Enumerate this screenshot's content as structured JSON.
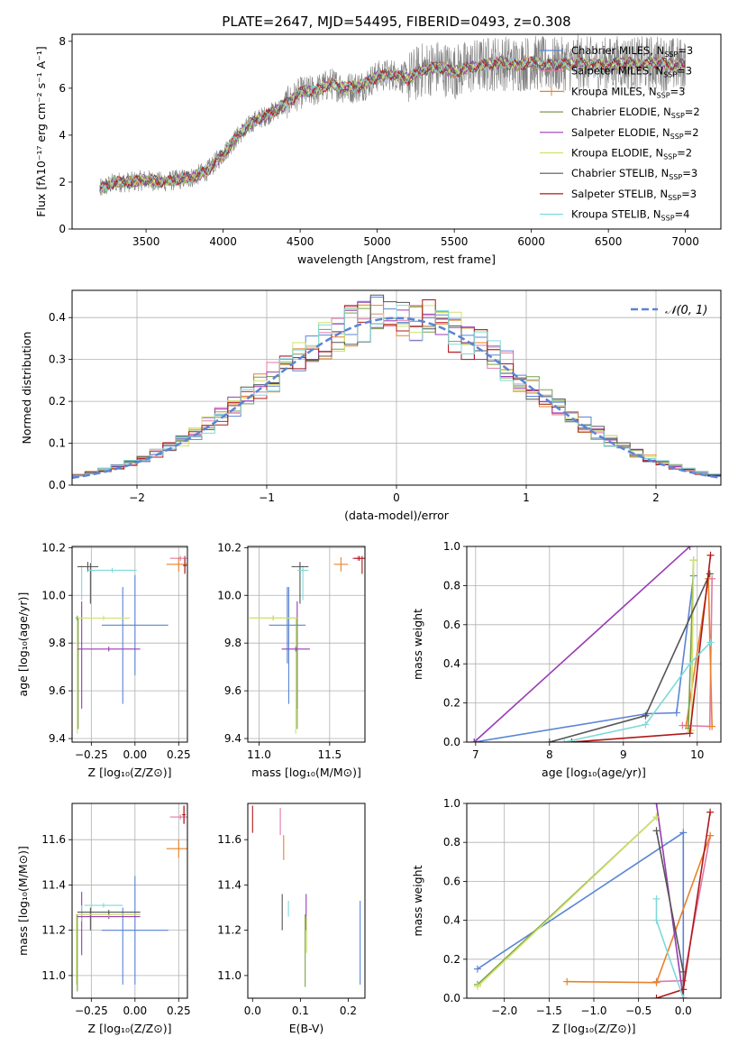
{
  "figure_title": "PLATE=2647, MJD=54495, FIBERID=0493, z=0.308",
  "colors": {
    "Chabrier MILES": "#5b84d6",
    "Salpeter MILES": "#e07aa8",
    "Kroupa MILES": "#e8822a",
    "Chabrier ELODIE": "#7a9e4a",
    "Salpeter ELODIE": "#9a3cb4",
    "Kroupa ELODIE": "#cfe36a",
    "Chabrier STELIB": "#555555",
    "Salpeter STELIB": "#b01818",
    "Kroupa STELIB": "#7fd9d9",
    "data": "#808080",
    "normal": "#5b84d6",
    "grid": "#b0b0b0"
  },
  "chart_data": [
    {
      "id": "spectrum",
      "type": "line",
      "title": "",
      "xlabel": "wavelength [Angstrom, rest frame]",
      "ylabel": "Flux [fλ10⁻¹⁷ erg cm⁻² s⁻¹ A⁻¹]",
      "xlim": [
        3020,
        7230
      ],
      "ylim": [
        0,
        8.3
      ],
      "xticks": [
        3500,
        4000,
        4500,
        5000,
        5500,
        6000,
        6500,
        7000
      ],
      "yticks": [
        0,
        2,
        4,
        6,
        8
      ],
      "grid": false,
      "legend_position": "top-right",
      "continuum": {
        "x": [
          3200,
          3300,
          3400,
          3500,
          3600,
          3700,
          3800,
          3900,
          4000,
          4100,
          4200,
          4300,
          4400,
          4500,
          4600,
          4700,
          4800,
          4900,
          5000,
          5100,
          5200,
          5300,
          5400,
          5500,
          5600,
          5700,
          5800,
          5900,
          6000,
          6100,
          6200,
          6300,
          6400,
          6500,
          6600,
          6700,
          6800,
          6900,
          7000
        ],
        "y": [
          1.7,
          2.0,
          2.0,
          2.1,
          2.0,
          2.1,
          2.2,
          2.5,
          3.2,
          4.0,
          4.6,
          4.9,
          5.3,
          5.8,
          5.9,
          6.2,
          6.0,
          6.1,
          6.5,
          6.6,
          6.4,
          6.8,
          6.9,
          6.7,
          6.9,
          7.0,
          7.1,
          7.0,
          7.1,
          7.0,
          7.0,
          7.1,
          7.0,
          7.0,
          7.1,
          7.0,
          7.1,
          7.0,
          7.0
        ]
      },
      "legend": [
        {
          "label": "Chabrier MILES, N",
          "sub": "SSP",
          "n": "=3"
        },
        {
          "label": "Salpeter MILES, N",
          "sub": "SSP",
          "n": "=3"
        },
        {
          "label": "Kroupa MILES, N",
          "sub": "SSP",
          "n": "=3"
        },
        {
          "label": "Chabrier ELODIE, N",
          "sub": "SSP",
          "n": "=2"
        },
        {
          "label": "Salpeter ELODIE, N",
          "sub": "SSP",
          "n": "=2"
        },
        {
          "label": "Kroupa ELODIE, N",
          "sub": "SSP",
          "n": "=2"
        },
        {
          "label": "Chabrier STELIB, N",
          "sub": "SSP",
          "n": "=3"
        },
        {
          "label": "Salpeter STELIB, N",
          "sub": "SSP",
          "n": "=3"
        },
        {
          "label": "Kroupa STELIB, N",
          "sub": "SSP",
          "n": "=4"
        }
      ]
    },
    {
      "id": "residuals",
      "type": "line",
      "xlabel": "(data-model)/error",
      "ylabel": "Normed distribution",
      "xlim": [
        -2.5,
        2.5
      ],
      "ylim": [
        0,
        0.465
      ],
      "xticks": [
        -2,
        -1,
        0,
        1,
        2
      ],
      "yticks": [
        0.0,
        0.1,
        0.2,
        0.3,
        0.4
      ],
      "grid": true,
      "legend_position": "top-right",
      "legend": "𝒩(0, 1)",
      "bin_width": 0.1
    },
    {
      "id": "age_Z",
      "type": "scatter",
      "xlabel": "Z [log₁₀(Z/Z⊙)]",
      "ylabel": "age  [log₁₀(age/yr)]",
      "xlim": [
        -0.36,
        0.3
      ],
      "ylim": [
        9.385,
        10.205
      ],
      "xticks": [
        -0.25,
        0.0,
        0.25
      ],
      "xticklabels": [
        "−0.25",
        "0.00",
        "0.25"
      ],
      "yticks": [
        9.4,
        9.6,
        9.8,
        10.0,
        10.2
      ],
      "grid": true,
      "points": [
        {
          "m": "Chabrier MILES",
          "x": 0.0,
          "y": 9.875,
          "xerr": 0.19,
          "yerr": 0.21
        },
        {
          "m": "Salpeter MILES",
          "x": 0.26,
          "y": 10.155,
          "xerr": 0.06,
          "yerr": 0.01
        },
        {
          "m": "Kroupa MILES",
          "x": 0.25,
          "y": 10.13,
          "xerr": 0.07,
          "yerr": 0.03
        },
        {
          "m": "Chabrier ELODIE",
          "x": -0.33,
          "y": 9.905,
          "xerr": 0.01,
          "yerr": 0.01
        },
        {
          "m": "Salpeter ELODIE",
          "x": -0.15,
          "y": 9.775,
          "xerr": 0.18,
          "yerr": 0.01
        },
        {
          "m": "Kroupa ELODIE",
          "x": -0.18,
          "y": 9.905,
          "xerr": 0.15,
          "yerr": 0.01
        },
        {
          "m": "Chabrier STELIB",
          "x": -0.27,
          "y": 10.12,
          "xerr": 0.06,
          "yerr": 0.02
        },
        {
          "m": "Salpeter STELIB",
          "x": 0.285,
          "y": 10.125,
          "xerr": 0.01,
          "yerr": 0.03
        },
        {
          "m": "Kroupa STELIB",
          "x": -0.13,
          "y": 10.105,
          "xerr": 0.14,
          "yerr": 0.01
        }
      ],
      "vlines": [
        {
          "m": "Chabrier MILES",
          "x": -0.07,
          "y0": 9.545,
          "y1": 10.035
        },
        {
          "m": "Salpeter ELODIE",
          "x": -0.305,
          "y0": 9.525,
          "y1": 9.975
        },
        {
          "m": "Kroupa STELIB",
          "x": -0.305,
          "y0": 9.98,
          "y1": 10.125
        },
        {
          "m": "Chabrier STELIB",
          "x": -0.255,
          "y0": 9.965,
          "y1": 10.135
        },
        {
          "m": "Kroupa ELODIE",
          "x": -0.33,
          "y0": 9.42,
          "y1": 9.905
        },
        {
          "m": "Chabrier ELODIE",
          "x": -0.325,
          "y0": 9.44,
          "y1": 9.905
        },
        {
          "m": "Salpeter STELIB",
          "x": 0.285,
          "y0": 10.09,
          "y1": 10.165
        }
      ]
    },
    {
      "id": "age_mass",
      "type": "scatter",
      "xlabel": "mass [log₁₀(M/M⊙)]",
      "ylabel": "",
      "xlim": [
        10.92,
        11.75
      ],
      "ylim": [
        9.385,
        10.205
      ],
      "xticks": [
        11.0,
        11.5
      ],
      "yticks": [
        9.4,
        9.6,
        9.8,
        10.0,
        10.2
      ],
      "grid": true,
      "points": [
        {
          "m": "Chabrier MILES",
          "x": 11.2,
          "y": 9.875,
          "xerr": 0.13,
          "yerr": 0.16
        },
        {
          "m": "Salpeter MILES",
          "x": 11.7,
          "y": 10.155,
          "xerr": 0.04,
          "yerr": 0.01
        },
        {
          "m": "Kroupa MILES",
          "x": 11.58,
          "y": 10.13,
          "xerr": 0.05,
          "yerr": 0.03
        },
        {
          "m": "Chabrier ELODIE",
          "x": 11.1,
          "y": 9.905,
          "xerr": 0.17,
          "yerr": 0.01
        },
        {
          "m": "Salpeter ELODIE",
          "x": 11.26,
          "y": 9.775,
          "xerr": 0.1,
          "yerr": 0.01
        },
        {
          "m": "Kroupa ELODIE",
          "x": 11.1,
          "y": 9.905,
          "xerr": 0.17,
          "yerr": 0.01
        },
        {
          "m": "Chabrier STELIB",
          "x": 11.29,
          "y": 10.12,
          "xerr": 0.06,
          "yerr": 0.02
        },
        {
          "m": "Salpeter STELIB",
          "x": 11.71,
          "y": 10.155,
          "xerr": 0.04,
          "yerr": 0.01
        },
        {
          "m": "Kroupa STELIB",
          "x": 11.31,
          "y": 10.105,
          "xerr": 0.04,
          "yerr": 0.01
        }
      ],
      "vlines": [
        {
          "m": "Chabrier MILES",
          "x": 11.21,
          "y0": 9.545,
          "y1": 10.035
        },
        {
          "m": "Salpeter ELODIE",
          "x": 11.27,
          "y0": 9.525,
          "y1": 9.975
        },
        {
          "m": "Kroupa STELIB",
          "x": 11.31,
          "y0": 9.98,
          "y1": 10.125
        },
        {
          "m": "Chabrier STELIB",
          "x": 11.29,
          "y0": 9.965,
          "y1": 10.135
        },
        {
          "m": "Kroupa ELODIE",
          "x": 11.26,
          "y0": 9.42,
          "y1": 9.905
        },
        {
          "m": "Chabrier ELODIE",
          "x": 11.27,
          "y0": 9.44,
          "y1": 9.905
        },
        {
          "m": "Salpeter STELIB",
          "x": 11.73,
          "y0": 10.09,
          "y1": 10.165
        }
      ]
    },
    {
      "id": "weight_age",
      "type": "line",
      "xlabel": "age  [log₁₀(age/yr)]",
      "ylabel": "mass weight",
      "xlim": [
        6.88,
        10.32
      ],
      "ylim": [
        0,
        1
      ],
      "xticks": [
        7,
        8,
        9,
        10
      ],
      "yticks": [
        0.0,
        0.2,
        0.4,
        0.6,
        0.8,
        1.0
      ],
      "grid": true,
      "series": [
        {
          "m": "Chabrier MILES",
          "x": [
            6.98,
            9.32,
            9.72,
            9.95
          ],
          "y": [
            0.0,
            0.145,
            0.15,
            0.85
          ]
        },
        {
          "m": "Salpeter MILES",
          "x": [
            9.8,
            10.17,
            10.2
          ],
          "y": [
            0.085,
            0.08,
            0.835
          ]
        },
        {
          "m": "Kroupa MILES",
          "x": [
            9.85,
            10.15,
            10.2
          ],
          "y": [
            0.085,
            0.835,
            0.08
          ]
        },
        {
          "m": "Chabrier ELODIE",
          "x": [
            9.88,
            9.95
          ],
          "y": [
            0.07,
            0.93
          ]
        },
        {
          "m": "Salpeter ELODIE",
          "x": [
            6.98,
            9.9
          ],
          "y": [
            0.0,
            1.0
          ]
        },
        {
          "m": "Kroupa ELODIE",
          "x": [
            9.92,
            9.95
          ],
          "y": [
            0.06,
            0.93
          ]
        },
        {
          "m": "Chabrier STELIB",
          "x": [
            8.0,
            9.3,
            10.17
          ],
          "y": [
            0.0,
            0.135,
            0.86
          ]
        },
        {
          "m": "Salpeter STELIB",
          "x": [
            8.3,
            9.9,
            10.18
          ],
          "y": [
            0.0,
            0.045,
            0.955
          ]
        },
        {
          "m": "Kroupa STELIB",
          "x": [
            8.2,
            9.3,
            9.9,
            10.18
          ],
          "y": [
            0.0,
            0.09,
            0.4,
            0.51
          ]
        }
      ]
    },
    {
      "id": "mass_Z",
      "type": "scatter",
      "xlabel": "Z [log₁₀(Z/Z⊙)]",
      "ylabel": "mass [log₁₀(M/M⊙)]",
      "xlim": [
        -0.36,
        0.3
      ],
      "ylim": [
        10.9,
        11.76
      ],
      "xticks": [
        -0.25,
        0.0,
        0.25
      ],
      "xticklabels": [
        "−0.25",
        "0.00",
        "0.25"
      ],
      "yticks": [
        11.0,
        11.2,
        11.4,
        11.6
      ],
      "grid": true,
      "points": [
        {
          "m": "Chabrier MILES",
          "x": 0.0,
          "y": 11.2,
          "xerr": 0.19,
          "yerr": 0.24
        },
        {
          "m": "Salpeter MILES",
          "x": 0.26,
          "y": 11.7,
          "xerr": 0.06,
          "yerr": 0.01
        },
        {
          "m": "Kroupa MILES",
          "x": 0.25,
          "y": 11.56,
          "xerr": 0.07,
          "yerr": 0.04
        },
        {
          "m": "Chabrier ELODIE",
          "x": -0.15,
          "y": 11.27,
          "xerr": 0.18,
          "yerr": 0.01
        },
        {
          "m": "Salpeter ELODIE",
          "x": -0.15,
          "y": 11.26,
          "xerr": 0.18,
          "yerr": 0.01
        },
        {
          "m": "Kroupa ELODIE",
          "x": -0.15,
          "y": 11.27,
          "xerr": 0.18,
          "yerr": 0.01
        },
        {
          "m": "Chabrier STELIB",
          "x": -0.15,
          "y": 11.28,
          "xerr": 0.18,
          "yerr": 0.01
        },
        {
          "m": "Salpeter STELIB",
          "x": 0.28,
          "y": 11.71,
          "xerr": 0.01,
          "yerr": 0.04
        },
        {
          "m": "Kroupa STELIB",
          "x": -0.18,
          "y": 11.31,
          "xerr": 0.11,
          "yerr": 0.01
        }
      ],
      "vlines": [
        {
          "m": "Chabrier MILES",
          "x": -0.07,
          "y0": 10.96,
          "y1": 11.3
        },
        {
          "m": "Salpeter ELODIE",
          "x": -0.305,
          "y0": 11.09,
          "y1": 11.37
        },
        {
          "m": "Kroupa STELIB",
          "x": -0.305,
          "y0": 11.24,
          "y1": 11.31
        },
        {
          "m": "Chabrier STELIB",
          "x": -0.255,
          "y0": 11.2,
          "y1": 11.3
        },
        {
          "m": "Kroupa ELODIE",
          "x": -0.335,
          "y0": 10.96,
          "y1": 11.27
        },
        {
          "m": "Chabrier ELODIE",
          "x": -0.33,
          "y0": 10.93,
          "y1": 11.27
        },
        {
          "m": "Salpeter STELIB",
          "x": 0.28,
          "y0": 11.67,
          "y1": 11.75
        }
      ]
    },
    {
      "id": "mass_EBV",
      "type": "scatter",
      "xlabel": "E(B-V)",
      "ylabel": "",
      "xlim": [
        -0.01,
        0.235
      ],
      "ylim": [
        10.9,
        11.76
      ],
      "xticks": [
        0.0,
        0.1,
        0.2
      ],
      "yticks": [
        11.0,
        11.2,
        11.4,
        11.6
      ],
      "grid": false,
      "vlines": [
        {
          "m": "Salpeter STELIB",
          "x": 0.0,
          "y0": 11.63,
          "y1": 11.75
        },
        {
          "m": "Salpeter MILES",
          "x": 0.058,
          "y0": 11.62,
          "y1": 11.74
        },
        {
          "m": "Kroupa MILES",
          "x": 0.065,
          "y0": 11.51,
          "y1": 11.62
        },
        {
          "m": "Chabrier STELIB",
          "x": 0.062,
          "y0": 11.2,
          "y1": 11.36
        },
        {
          "m": "Kroupa STELIB",
          "x": 0.075,
          "y0": 11.26,
          "y1": 11.33
        },
        {
          "m": "Salpeter ELODIE",
          "x": 0.112,
          "y0": 11.2,
          "y1": 11.36
        },
        {
          "m": "Chabrier ELODIE",
          "x": 0.11,
          "y0": 10.95,
          "y1": 11.27
        },
        {
          "m": "Kroupa ELODIE",
          "x": 0.113,
          "y0": 11.1,
          "y1": 11.26
        },
        {
          "m": "Chabrier MILES",
          "x": 0.225,
          "y0": 10.96,
          "y1": 11.33
        }
      ]
    },
    {
      "id": "weight_Z",
      "type": "line",
      "xlabel": "Z [log₁₀(Z/Z⊙)]",
      "ylabel": "mass weight",
      "xlim": [
        -2.42,
        0.42
      ],
      "ylim": [
        0,
        1
      ],
      "xticks": [
        -2.0,
        -1.5,
        -1.0,
        -0.5,
        0.0
      ],
      "xticklabels": [
        "−2.0",
        "−1.5",
        "−1.0",
        "−0.5",
        "0.0"
      ],
      "yticks": [
        0.0,
        0.2,
        0.4,
        0.6,
        0.8,
        1.0
      ],
      "grid": true,
      "series": [
        {
          "m": "Chabrier MILES",
          "x": [
            -2.3,
            0.0,
            0.0
          ],
          "y": [
            0.15,
            0.85,
            0.0
          ]
        },
        {
          "m": "Salpeter MILES",
          "x": [
            -0.3,
            0.0,
            0.3
          ],
          "y": [
            0.085,
            0.09,
            0.835
          ]
        },
        {
          "m": "Kroupa MILES",
          "x": [
            -1.3,
            -0.3,
            0.3
          ],
          "y": [
            0.085,
            0.08,
            0.835
          ]
        },
        {
          "m": "Chabrier ELODIE",
          "x": [
            -2.3,
            -0.3
          ],
          "y": [
            0.07,
            0.93
          ]
        },
        {
          "m": "Salpeter ELODIE",
          "x": [
            -0.3,
            0.0
          ],
          "y": [
            1.0,
            0.0
          ]
        },
        {
          "m": "Kroupa ELODIE",
          "x": [
            -2.3,
            -0.3
          ],
          "y": [
            0.06,
            0.93
          ]
        },
        {
          "m": "Chabrier STELIB",
          "x": [
            -0.3,
            0.0,
            0.0
          ],
          "y": [
            0.86,
            0.135,
            0.0
          ]
        },
        {
          "m": "Salpeter STELIB",
          "x": [
            -0.3,
            0.0,
            0.3
          ],
          "y": [
            0.0,
            0.045,
            0.955
          ]
        },
        {
          "m": "Kroupa STELIB",
          "x": [
            -0.3,
            -0.3,
            0.0
          ],
          "y": [
            0.51,
            0.4,
            0.0
          ]
        }
      ]
    }
  ]
}
